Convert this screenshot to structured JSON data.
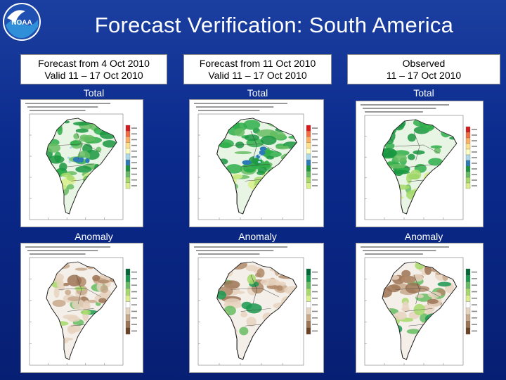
{
  "title": "Forecast Verification: South America",
  "logo": {
    "icon": "noaa-logo-icon",
    "text": "NOAA"
  },
  "columns": [
    {
      "header_line1": "Forecast from 4 Oct 2010",
      "header_line2": "Valid 11 – 17 Oct 2010",
      "total_label": "Total",
      "anomaly_label": "Anomaly"
    },
    {
      "header_line1": "Forecast from 11 Oct 2010",
      "header_line2": "Valid 11 – 17 Oct 2010",
      "total_label": "Total",
      "anomaly_label": "Anomaly"
    },
    {
      "header_line1": "Observed",
      "header_line2": "11 – 17 Oct 2010",
      "total_label": "Total",
      "anomaly_label": "Anomaly"
    }
  ],
  "colors": {
    "background": "#0a2a8c",
    "total_scale": [
      "#d7191c",
      "#f46d43",
      "#fdae61",
      "#fee08b",
      "#ffffbf",
      "#abd9e9",
      "#2c7bb6",
      "#1a9641",
      "#66bd63",
      "#a6d96a",
      "#d9ef8b"
    ],
    "anomaly_scale": [
      "#006837",
      "#1a9850",
      "#66bd63",
      "#a6d96a",
      "#d9ef8b",
      "#ffffff",
      "#e7d4c0",
      "#c7a88b",
      "#9c7353",
      "#6b4226"
    ]
  }
}
